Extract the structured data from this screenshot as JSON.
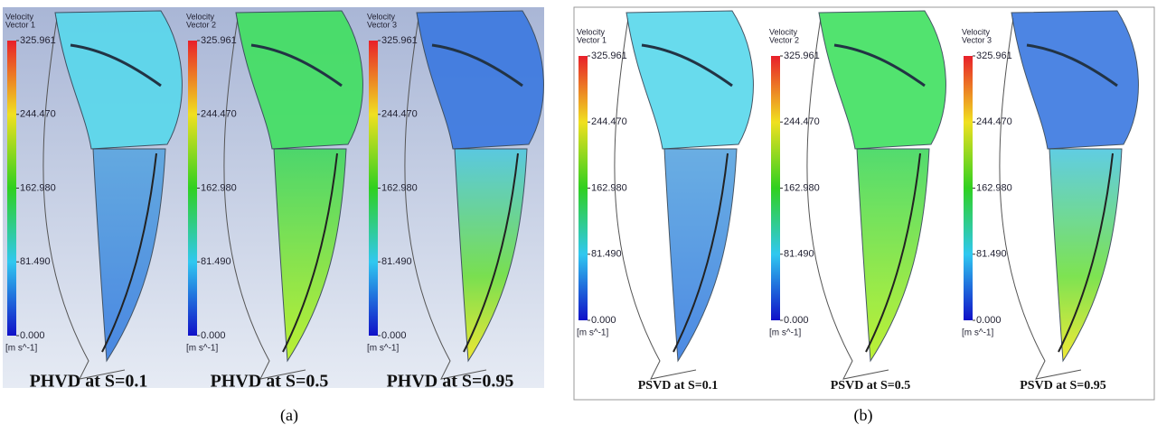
{
  "panels": [
    {
      "label": "(a)",
      "views": [
        {
          "title": [
            "Velocity",
            "Vector 1"
          ],
          "unit": "[m s^-1]",
          "caption": "PHVD at S=0.1"
        },
        {
          "title": [
            "Velocity",
            "Vector 2"
          ],
          "unit": "[m s^-1]",
          "caption": "PHVD at S=0.5"
        },
        {
          "title": [
            "Velocity",
            "Vector 3"
          ],
          "unit": "[m s^-1]",
          "caption": "PHVD at S=0.95"
        }
      ]
    },
    {
      "label": "(b)",
      "views": [
        {
          "title": [
            "Velocity",
            "Vector 1"
          ],
          "unit": "[m s^-1]",
          "caption": "PSVD at S=0.1"
        },
        {
          "title": [
            "Velocity",
            "Vector 2"
          ],
          "unit": "[m s^-1]",
          "caption": "PSVD at S=0.5"
        },
        {
          "title": [
            "Velocity",
            "Vector 3"
          ],
          "unit": "[m s^-1]",
          "caption": "PSVD at S=0.95"
        }
      ]
    }
  ],
  "scale": {
    "range": [
      0,
      325.961
    ],
    "ticks": [
      325.961,
      {
        "value": 244.47,
        "label": "244.470"
      },
      {
        "value": 162.98,
        "label": "162.980"
      },
      {
        "value": 81.49,
        "label": "81.490"
      },
      {
        "value": 0,
        "label": "0.000"
      }
    ]
  }
}
